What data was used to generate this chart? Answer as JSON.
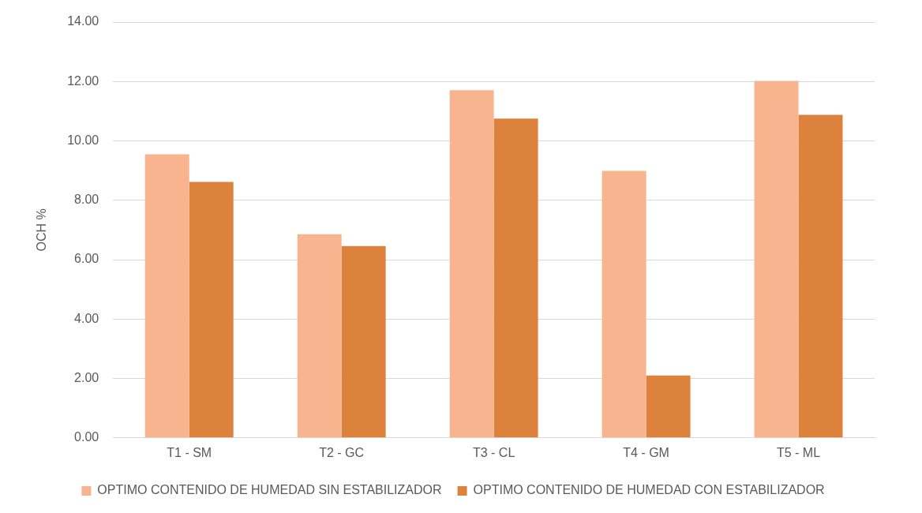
{
  "chart_data": {
    "type": "bar",
    "ylabel": "OCH %",
    "categories": [
      "T1 - SM",
      "T2 - GC",
      "T3 - CL",
      "T4 - GM",
      "T5 - ML"
    ],
    "series": [
      {
        "name": "OPTIMO CONTENIDO DE HUMEDAD SIN ESTABILIZADOR",
        "color": "#f8b48e",
        "values": [
          9.55,
          6.86,
          11.71,
          8.99,
          12.02
        ]
      },
      {
        "name": "OPTIMO CONTENIDO DE HUMEDAD CON ESTABILIZADOR",
        "color": "#dc823c",
        "values": [
          8.62,
          6.46,
          10.75,
          2.1,
          10.88
        ]
      }
    ],
    "ylim": [
      0,
      14
    ],
    "yticks": [
      {
        "value": 0,
        "label": "0.00"
      },
      {
        "value": 2,
        "label": "2.00"
      },
      {
        "value": 4,
        "label": "4.00"
      },
      {
        "value": 6,
        "label": "6.00"
      },
      {
        "value": 8,
        "label": "8.00"
      },
      {
        "value": 10,
        "label": "10.00"
      },
      {
        "value": 12,
        "label": "12.00"
      },
      {
        "value": 14,
        "label": "14.00"
      }
    ],
    "grid": "y",
    "legend": "bottom"
  }
}
